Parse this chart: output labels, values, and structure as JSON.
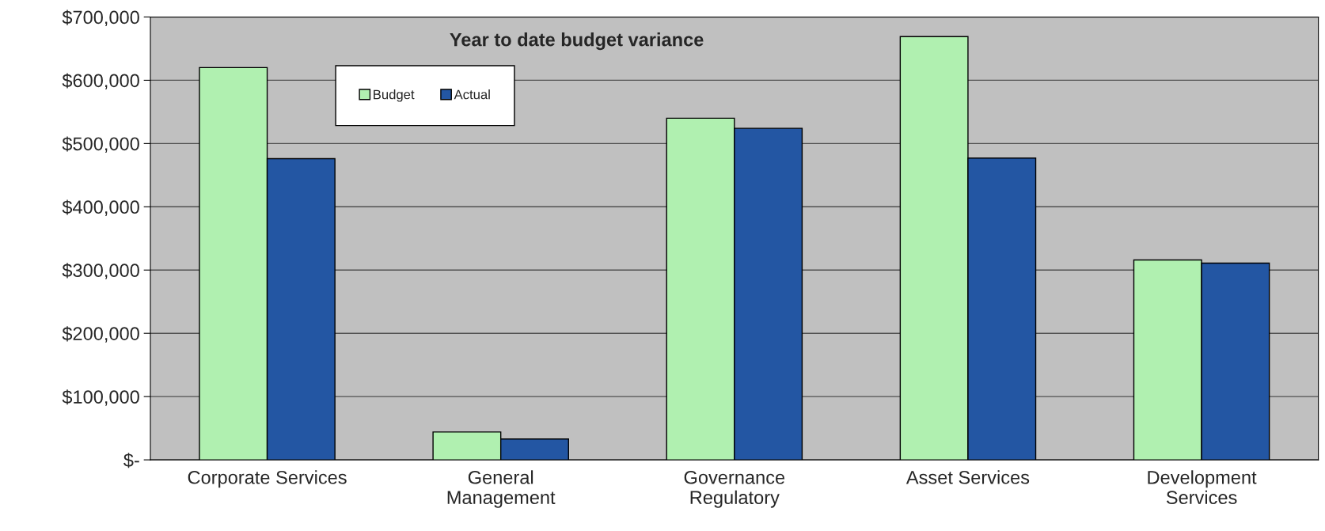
{
  "chart_data": {
    "type": "bar",
    "title": "Year to date budget variance",
    "categories": [
      "Corporate Services",
      "General\nManagement",
      "Governance\nRegulatory",
      "Asset Services",
      "Development\nServices"
    ],
    "series": [
      {
        "name": "Budget",
        "color": "#b0f0b0",
        "values": [
          620000,
          44000,
          540000,
          669000,
          316000
        ]
      },
      {
        "name": "Actual",
        "color": "#2356a3",
        "values": [
          476000,
          33000,
          524000,
          477000,
          311000
        ]
      }
    ],
    "ylim": [
      0,
      700000
    ],
    "yticks": [
      {
        "value": 0,
        "label": "$-"
      },
      {
        "value": 100000,
        "label": "$100,000"
      },
      {
        "value": 200000,
        "label": "$200,000"
      },
      {
        "value": 300000,
        "label": "$300,000"
      },
      {
        "value": 400000,
        "label": "$400,000"
      },
      {
        "value": 500000,
        "label": "$500,000"
      },
      {
        "value": 600000,
        "label": "$600,000"
      },
      {
        "value": 700000,
        "label": "$700,000"
      }
    ],
    "grid": "y",
    "legend": "top left"
  }
}
